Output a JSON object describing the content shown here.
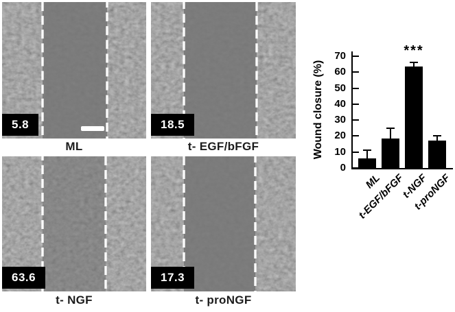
{
  "panels": [
    {
      "value": "5.8",
      "label": "ML",
      "scale_bar": true
    },
    {
      "value": "18.5",
      "label": "t- EGF/bFGF",
      "scale_bar": false
    },
    {
      "value": "63.6",
      "label": "t- NGF",
      "scale_bar": false
    },
    {
      "value": "17.3",
      "label": "t- proNGF",
      "scale_bar": false
    }
  ],
  "chart_data": {
    "type": "bar",
    "title": "",
    "ylabel": "Wound closure (%)",
    "categories": [
      "ML",
      "t-EGF/bFGF",
      "t-NGF",
      "t-proNGF"
    ],
    "values": [
      5.8,
      18.5,
      63.6,
      17.3
    ],
    "errors_upper": [
      5.2,
      6.5,
      2.5,
      2.7
    ],
    "ylim": [
      0,
      70
    ],
    "yticks": [
      0,
      10,
      20,
      30,
      40,
      50,
      60,
      70
    ],
    "bar_color": "#000000",
    "grid": false,
    "legend": null,
    "annotations": [
      {
        "text": "***",
        "category": "t-NGF"
      }
    ]
  },
  "colors": {
    "micrograph_base": "#5e5e5e",
    "wound_band": "#747474",
    "dashed_line": "#fbfbfb",
    "badge_bg": "#000000",
    "badge_text": "#ffffff"
  }
}
